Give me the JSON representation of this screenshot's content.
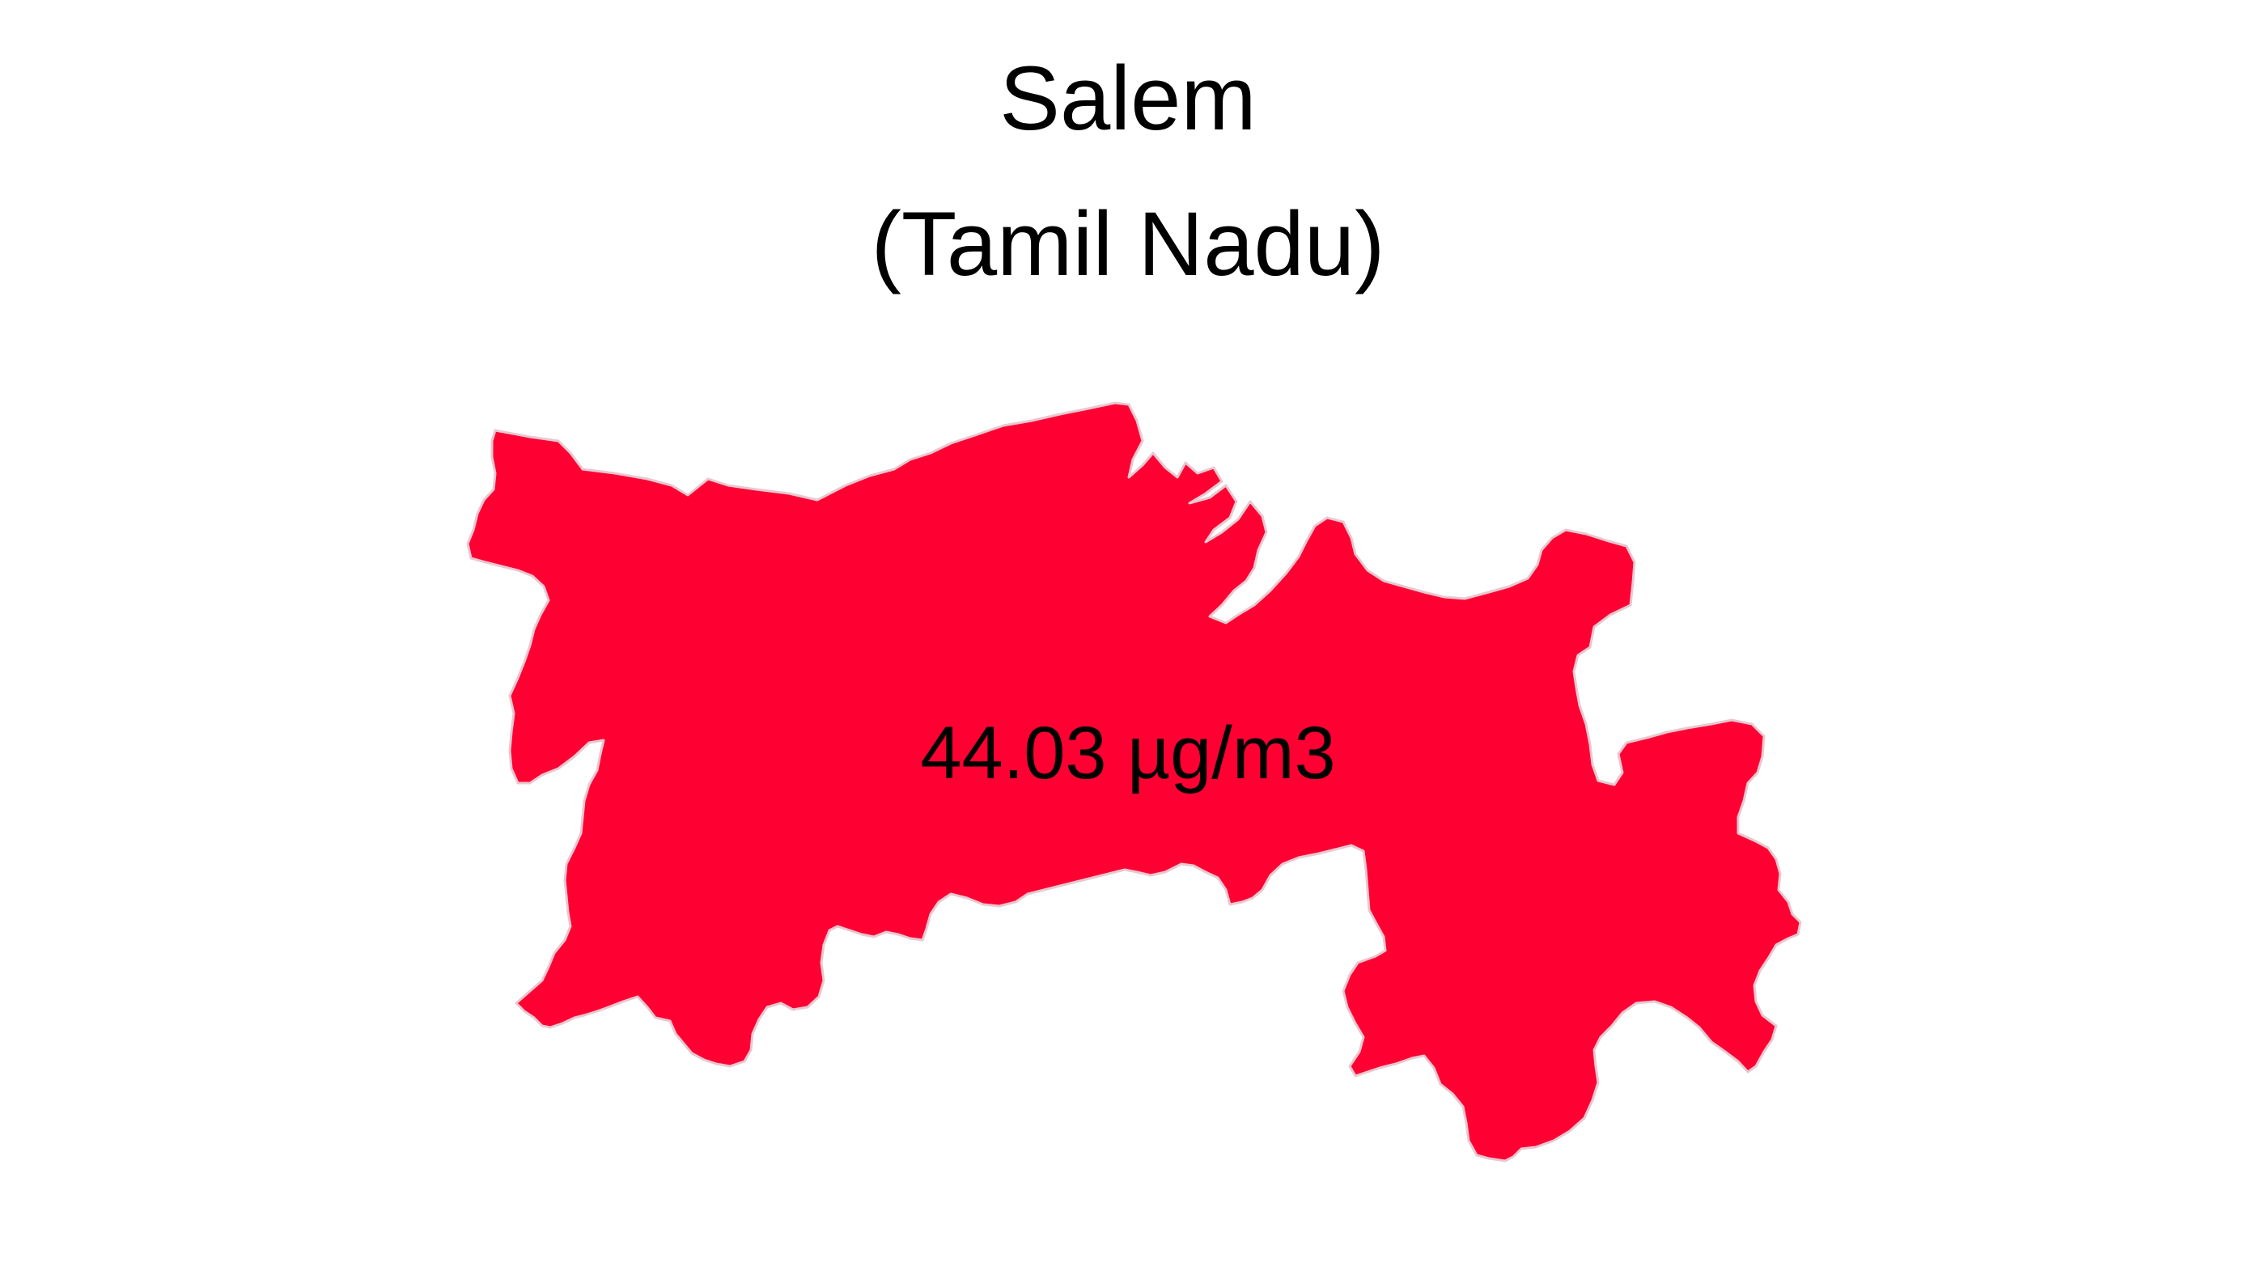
{
  "title": "Salem",
  "subtitle": "(Tamil Nadu)",
  "region": {
    "name": "Salem",
    "state": "Tamil Nadu",
    "value_label": "44.03 µg/m3",
    "value": 44.03,
    "unit": "µg/m3",
    "fill_color": "#FF0033",
    "border_color": "#E8C8D0"
  },
  "background_color": "#FFFFFF"
}
